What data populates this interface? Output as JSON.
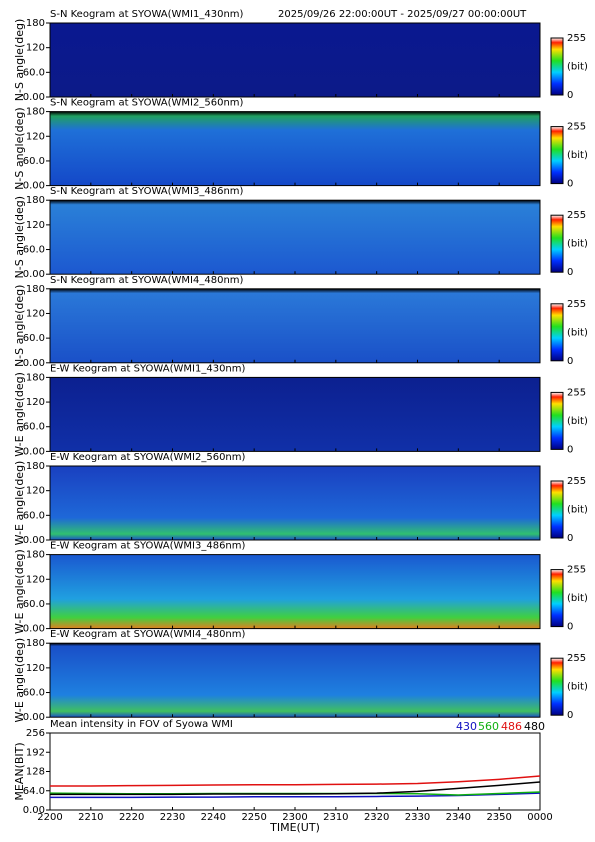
{
  "chart_data": [
    {
      "type": "keogram",
      "title": "S-N Keogram at SYOWA(WMI1_430nm)",
      "subtitle": "2025/09/26 22:00:00UT - 2025/09/27 00:00:00UT",
      "y_label": "N-S angle(deg)",
      "ylim": [
        0,
        180
      ],
      "yticks": [
        {
          "value": 0,
          "label": "0.00"
        },
        {
          "value": 60,
          "label": "60.0"
        },
        120,
        180
      ],
      "colorbar": {
        "label": "(bit)",
        "lim": [
          0,
          255
        ],
        "ticks": [
          0,
          255
        ]
      }
    },
    {
      "type": "keogram",
      "title": "S-N Keogram at SYOWA(WMI2_560nm)",
      "y_label": "N-S angle(deg)",
      "ylim": [
        0,
        180
      ],
      "yticks": [
        {
          "value": 0,
          "label": "0.00"
        },
        {
          "value": 60,
          "label": "60.0"
        },
        120,
        180
      ],
      "colorbar": {
        "label": "(bit)",
        "lim": [
          0,
          255
        ],
        "ticks": [
          0,
          255
        ]
      }
    },
    {
      "type": "keogram",
      "title": "S-N Keogram at SYOWA(WMI3_486nm)",
      "y_label": "N-S angle(deg)",
      "ylim": [
        0,
        180
      ],
      "yticks": [
        {
          "value": 0,
          "label": "0.00"
        },
        {
          "value": 60,
          "label": "60.0"
        },
        120,
        180
      ],
      "colorbar": {
        "label": "(bit)",
        "lim": [
          0,
          255
        ],
        "ticks": [
          0,
          255
        ]
      }
    },
    {
      "type": "keogram",
      "title": "S-N Keogram at SYOWA(WMI4_480nm)",
      "y_label": "N-S angle(deg)",
      "ylim": [
        0,
        180
      ],
      "yticks": [
        {
          "value": 0,
          "label": "0.00"
        },
        {
          "value": 60,
          "label": "60.0"
        },
        120,
        180
      ],
      "colorbar": {
        "label": "(bit)",
        "lim": [
          0,
          255
        ],
        "ticks": [
          0,
          255
        ]
      }
    },
    {
      "type": "keogram",
      "title": "E-W Keogram at SYOWA(WMI1_430nm)",
      "y_label": "W-E angle(deg)",
      "ylim": [
        0,
        180
      ],
      "yticks": [
        {
          "value": 0,
          "label": "0.00"
        },
        {
          "value": 60,
          "label": "60.0"
        },
        120,
        180
      ],
      "colorbar": {
        "label": "(bit)",
        "lim": [
          0,
          255
        ],
        "ticks": [
          0,
          255
        ]
      }
    },
    {
      "type": "keogram",
      "title": "E-W Keogram at SYOWA(WMI2_560nm)",
      "y_label": "W-E angle(deg)",
      "ylim": [
        0,
        180
      ],
      "yticks": [
        {
          "value": 0,
          "label": "0.00"
        },
        {
          "value": 60,
          "label": "60.0"
        },
        120,
        180
      ],
      "colorbar": {
        "label": "(bit)",
        "lim": [
          0,
          255
        ],
        "ticks": [
          0,
          255
        ]
      }
    },
    {
      "type": "keogram",
      "title": "E-W Keogram at SYOWA(WMI3_486nm)",
      "y_label": "W-E angle(deg)",
      "ylim": [
        0,
        180
      ],
      "yticks": [
        {
          "value": 0,
          "label": "0.00"
        },
        {
          "value": 60,
          "label": "60.0"
        },
        120,
        180
      ],
      "colorbar": {
        "label": "(bit)",
        "lim": [
          0,
          255
        ],
        "ticks": [
          0,
          255
        ]
      }
    },
    {
      "type": "keogram",
      "title": "E-W Keogram at SYOWA(WMI4_480nm)",
      "y_label": "W-E angle(deg)",
      "ylim": [
        0,
        180
      ],
      "yticks": [
        {
          "value": 0,
          "label": "0.00"
        },
        {
          "value": 60,
          "label": "60.0"
        },
        120,
        180
      ],
      "colorbar": {
        "label": "(bit)",
        "lim": [
          0,
          255
        ],
        "ticks": [
          0,
          255
        ]
      }
    },
    {
      "type": "line",
      "title": "Mean intensity in FOV of Syowa WMI",
      "x_label": "TIME(UT)",
      "y_label": "MEAN(BIT)",
      "categories": [
        "2200",
        "2210",
        "2220",
        "2230",
        "2240",
        "2250",
        "2300",
        "2310",
        "2320",
        "2330",
        "2340",
        "2350",
        "0000"
      ],
      "ylim": [
        0,
        256
      ],
      "yticks": [
        {
          "value": 0,
          "label": "0.00"
        },
        {
          "value": 64,
          "label": "64.0"
        },
        128,
        192,
        256
      ],
      "series": [
        {
          "name": "430",
          "color": "#1010c0",
          "values": [
            42,
            42,
            42,
            43,
            43,
            44,
            44,
            44,
            45,
            46,
            48,
            52,
            56
          ]
        },
        {
          "name": "560",
          "color": "#10b010",
          "values": [
            56,
            55,
            54,
            54,
            55,
            55,
            55,
            55,
            55,
            54,
            50,
            55,
            60
          ]
        },
        {
          "name": "486",
          "color": "#e01010",
          "values": [
            80,
            80,
            81,
            82,
            83,
            84,
            84,
            85,
            86,
            88,
            94,
            102,
            113
          ]
        },
        {
          "name": "480",
          "color": "#000000",
          "values": [
            52,
            52,
            52,
            52,
            53,
            53,
            53,
            54,
            56,
            62,
            72,
            82,
            93
          ]
        }
      ]
    }
  ]
}
